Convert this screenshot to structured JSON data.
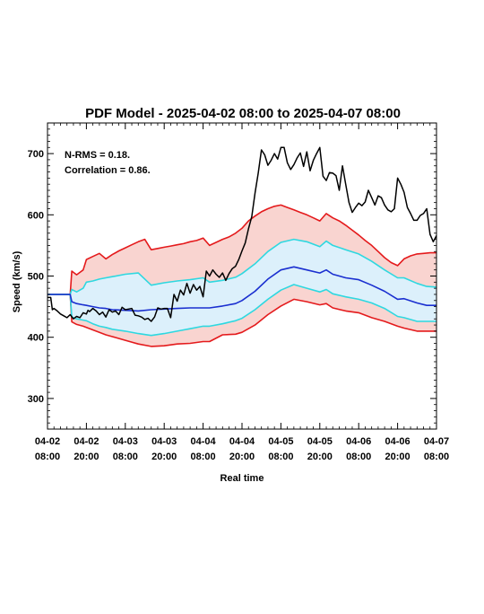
{
  "chart_data": {
    "type": "line",
    "title": "PDF Model - 2025-04-02 08:00 to 2025-04-07 08:00",
    "xlabel": "Real time",
    "ylabel": "Speed (km/s)",
    "xlim_hours": [
      0,
      120
    ],
    "ylim": [
      250,
      750
    ],
    "yticks": [
      300,
      400,
      500,
      600,
      700
    ],
    "xtick_labels": [
      {
        "hours": 0,
        "date": "04-02",
        "time": "08:00"
      },
      {
        "hours": 12,
        "date": "04-02",
        "time": "20:00"
      },
      {
        "hours": 24,
        "date": "04-03",
        "time": "08:00"
      },
      {
        "hours": 36,
        "date": "04-03",
        "time": "20:00"
      },
      {
        "hours": 48,
        "date": "04-04",
        "time": "08:00"
      },
      {
        "hours": 60,
        "date": "04-04",
        "time": "20:00"
      },
      {
        "hours": 72,
        "date": "04-05",
        "time": "08:00"
      },
      {
        "hours": 84,
        "date": "04-05",
        "time": "20:00"
      },
      {
        "hours": 96,
        "date": "04-06",
        "time": "08:00"
      },
      {
        "hours": 108,
        "date": "04-06",
        "time": "20:00"
      },
      {
        "hours": 120,
        "date": "04-07",
        "time": "08:00"
      }
    ],
    "annotations": [
      "N-RMS = 0.18.",
      "Correlation = 0.86."
    ],
    "grid": false,
    "legend": "none",
    "colors": {
      "observed": "#000000",
      "outer_band_line": "#e41a1c",
      "outer_band_fill": "#f9d4d0",
      "inner_band_line": "#2ed8e0",
      "inner_band_fill": "#dcf0fb",
      "median": "#1a2fd0"
    },
    "series": [
      {
        "role": "upper_outer",
        "x": [
          0,
          7,
          7.5,
          9,
          10,
          11,
          12,
          14,
          16,
          18,
          20,
          22,
          24,
          26,
          28,
          30,
          32,
          34,
          36,
          38,
          40,
          42,
          44,
          46,
          48,
          50,
          52,
          54,
          56,
          58,
          60,
          62,
          64,
          66,
          68,
          70,
          72,
          74,
          76,
          78,
          80,
          82,
          84,
          86,
          88,
          90,
          92,
          94,
          96,
          98,
          100,
          102,
          104,
          106,
          108,
          110,
          112,
          114,
          116,
          118,
          120
        ],
        "y": [
          470,
          470,
          508,
          502,
          506,
          510,
          527,
          532,
          537,
          528,
          535,
          541,
          546,
          551,
          556,
          560,
          543,
          545,
          547,
          549,
          551,
          553,
          556,
          558,
          562,
          550,
          555,
          560,
          564,
          570,
          578,
          590,
          598,
          605,
          610,
          614,
          616,
          612,
          608,
          604,
          600,
          595,
          590,
          602,
          595,
          590,
          583,
          575,
          567,
          558,
          550,
          540,
          530,
          522,
          517,
          528,
          533,
          536,
          537,
          538,
          538
        ]
      },
      {
        "role": "upper_inner",
        "x": [
          0,
          7,
          7.5,
          9,
          11,
          12,
          14,
          16,
          18,
          20,
          24,
          28,
          32,
          36,
          40,
          44,
          48,
          50,
          54,
          58,
          60,
          64,
          68,
          72,
          76,
          80,
          84,
          86,
          88,
          92,
          96,
          100,
          104,
          108,
          110,
          114,
          117,
          120
        ],
        "y": [
          470,
          470,
          478,
          474,
          480,
          490,
          492,
          495,
          497,
          499,
          503,
          505,
          485,
          489,
          492,
          494,
          497,
          490,
          493,
          498,
          504,
          520,
          540,
          555,
          560,
          556,
          548,
          557,
          550,
          543,
          536,
          524,
          510,
          497,
          497,
          488,
          483,
          482
        ]
      },
      {
        "role": "median",
        "x": [
          0,
          7,
          7.5,
          9,
          11,
          12,
          14,
          16,
          18,
          20,
          24,
          28,
          32,
          36,
          40,
          44,
          48,
          50,
          54,
          58,
          60,
          64,
          68,
          72,
          76,
          80,
          84,
          86,
          88,
          92,
          96,
          100,
          104,
          108,
          110,
          114,
          117,
          120
        ],
        "y": [
          470,
          470,
          458,
          455,
          453,
          452,
          450,
          448,
          447,
          445,
          444,
          443,
          445,
          446,
          447,
          448,
          448,
          448,
          451,
          455,
          460,
          475,
          495,
          510,
          515,
          510,
          505,
          510,
          503,
          497,
          494,
          485,
          475,
          462,
          463,
          456,
          452,
          452
        ]
      },
      {
        "role": "lower_inner",
        "x": [
          0,
          7,
          7.5,
          9,
          11,
          12,
          14,
          16,
          18,
          20,
          24,
          28,
          32,
          36,
          40,
          44,
          48,
          50,
          54,
          58,
          60,
          64,
          68,
          72,
          76,
          80,
          84,
          86,
          88,
          92,
          96,
          100,
          104,
          108,
          110,
          114,
          117,
          120
        ],
        "y": [
          470,
          470,
          433,
          430,
          428,
          427,
          422,
          418,
          416,
          413,
          410,
          406,
          403,
          406,
          410,
          414,
          418,
          418,
          422,
          427,
          431,
          445,
          462,
          477,
          486,
          480,
          474,
          478,
          471,
          466,
          462,
          456,
          447,
          434,
          432,
          426,
          426,
          426
        ]
      },
      {
        "role": "lower_outer",
        "x": [
          0,
          7,
          7.5,
          9,
          11,
          12,
          14,
          16,
          18,
          20,
          24,
          28,
          32,
          36,
          40,
          44,
          48,
          50,
          54,
          58,
          60,
          64,
          68,
          72,
          76,
          80,
          84,
          86,
          88,
          92,
          96,
          100,
          104,
          108,
          110,
          114,
          117,
          120
        ],
        "y": [
          470,
          470,
          425,
          421,
          418,
          416,
          412,
          408,
          404,
          401,
          395,
          389,
          385,
          386,
          389,
          390,
          393,
          393,
          404,
          405,
          408,
          420,
          437,
          451,
          462,
          458,
          453,
          455,
          448,
          443,
          440,
          432,
          426,
          418,
          415,
          410,
          410,
          410
        ]
      },
      {
        "role": "observed",
        "x": [
          0,
          1,
          1.5,
          2,
          3,
          4,
          5,
          6,
          7,
          8,
          9,
          10,
          11,
          12,
          12.5,
          13,
          14,
          15,
          16,
          17,
          18,
          19,
          20,
          21,
          22,
          23,
          24,
          25,
          26,
          27,
          28,
          29,
          30,
          31,
          32,
          33,
          34,
          35,
          36,
          37,
          38,
          39,
          40,
          41,
          42,
          43,
          44,
          45,
          46,
          47,
          48,
          49,
          50,
          51,
          52,
          53,
          54,
          55,
          56,
          57,
          58,
          59,
          60,
          61,
          62,
          63,
          64,
          65,
          66,
          67,
          68,
          69,
          70,
          71,
          72,
          73,
          74,
          75,
          76,
          77,
          78,
          79,
          80,
          81,
          82,
          83,
          84,
          85,
          86,
          87,
          88,
          89,
          90,
          91,
          92,
          93,
          94,
          95,
          96,
          97,
          98,
          99,
          100,
          101,
          102,
          103,
          104,
          105,
          106,
          107,
          108,
          109,
          110,
          111,
          112,
          113,
          114,
          115,
          116,
          117,
          118,
          119,
          120
        ],
        "y": [
          465,
          465,
          445,
          447,
          443,
          438,
          435,
          432,
          437,
          430,
          434,
          432,
          440,
          438,
          444,
          442,
          447,
          443,
          437,
          441,
          433,
          445,
          441,
          443,
          437,
          449,
          445,
          446,
          447,
          436,
          435,
          433,
          429,
          431,
          426,
          433,
          448,
          446,
          447,
          447,
          432,
          470,
          459,
          477,
          469,
          488,
          472,
          486,
          477,
          483,
          466,
          508,
          500,
          510,
          503,
          498,
          505,
          493,
          504,
          512,
          516,
          527,
          541,
          554,
          577,
          597,
          635,
          668,
          706,
          698,
          681,
          689,
          700,
          691,
          710,
          710,
          685,
          674,
          682,
          693,
          701,
          679,
          703,
          672,
          689,
          700,
          710,
          663,
          656,
          669,
          668,
          664,
          640,
          680,
          650,
          620,
          604,
          612,
          619,
          615,
          621,
          640,
          628,
          616,
          631,
          628,
          616,
          608,
          605,
          610,
          660,
          650,
          637,
          612,
          602,
          591,
          591,
          599,
          602,
          610,
          568,
          556,
          566
        ]
      }
    ]
  }
}
